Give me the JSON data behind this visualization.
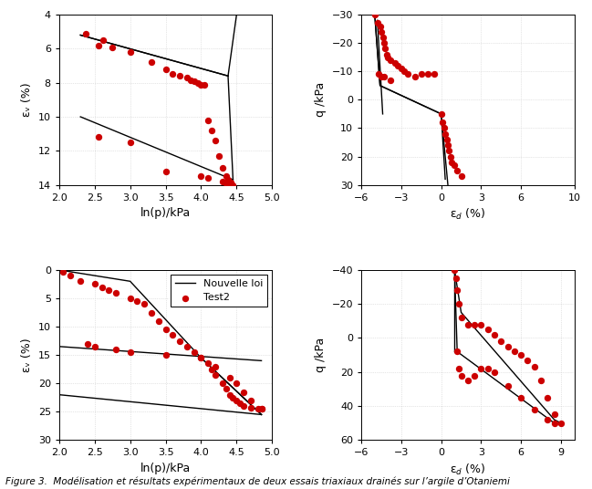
{
  "fig_width": 6.49,
  "fig_height": 5.36,
  "top_left": {
    "xlabel": "ln(p)/kPa",
    "ylabel": "εᵥ (%)",
    "xlim": [
      2,
      5
    ],
    "ylim": [
      14,
      4
    ],
    "xticks": [
      2,
      2.5,
      3,
      3.5,
      4,
      4.5,
      5
    ],
    "yticks": [
      4,
      6,
      8,
      10,
      12,
      14
    ],
    "lines": [
      {
        "x": [
          2.3,
          4.38
        ],
        "y": [
          5.2,
          7.6
        ]
      },
      {
        "x": [
          4.38,
          4.5
        ],
        "y": [
          7.6,
          4.0
        ]
      },
      {
        "x": [
          2.3,
          4.38
        ],
        "y": [
          5.2,
          7.6
        ]
      },
      {
        "x": [
          4.38,
          4.45
        ],
        "y": [
          7.6,
          13.7
        ]
      },
      {
        "x": [
          2.3,
          4.45
        ],
        "y": [
          10.0,
          13.7
        ]
      }
    ],
    "dots_x": [
      2.38,
      2.55,
      2.62,
      2.75,
      3.0,
      3.3,
      3.5,
      3.6,
      3.7,
      3.8,
      3.85,
      3.9,
      3.95,
      4.0,
      4.05,
      4.1,
      4.15,
      4.2,
      4.25,
      4.3,
      4.35,
      4.38,
      4.4,
      4.42,
      4.45,
      2.55,
      3.0,
      3.5,
      4.0,
      4.1,
      4.3,
      4.35,
      4.4
    ],
    "dots_y": [
      5.1,
      5.8,
      5.5,
      5.9,
      6.2,
      6.8,
      7.2,
      7.5,
      7.6,
      7.7,
      7.85,
      7.9,
      8.0,
      8.1,
      8.15,
      10.2,
      10.8,
      11.4,
      12.3,
      13.0,
      13.5,
      13.7,
      13.85,
      13.85,
      14.0,
      11.2,
      11.5,
      13.2,
      13.5,
      13.6,
      13.8,
      13.9,
      14.0
    ]
  },
  "top_right": {
    "xlabel": "ε_d (%)",
    "ylabel": "q /kPa",
    "xlim": [
      -6,
      10
    ],
    "ylim": [
      30,
      -30
    ],
    "xticks": [
      -6,
      -3,
      0,
      3,
      6,
      10
    ],
    "yticks": [
      -30,
      -20,
      -10,
      0,
      10,
      20,
      30
    ],
    "lines": [
      {
        "x": [
          -5.0,
          -4.6,
          0.0,
          0.5
        ],
        "y": [
          -30,
          -5,
          5,
          30
        ]
      },
      {
        "x": [
          -5.0,
          -4.6,
          0.0,
          0.3
        ],
        "y": [
          -30,
          -5,
          5,
          28
        ]
      },
      {
        "x": [
          -4.8,
          -4.4
        ],
        "y": [
          -28,
          5
        ]
      }
    ],
    "dots_x": [
      -5.0,
      -4.8,
      -4.6,
      -4.5,
      -4.4,
      -4.3,
      -4.2,
      -4.1,
      -4.0,
      -3.8,
      -3.5,
      -3.3,
      -3.0,
      -2.8,
      -2.5,
      -2.0,
      -1.5,
      -1.0,
      -0.5,
      0.0,
      0.1,
      0.2,
      0.3,
      0.4,
      0.5,
      0.6,
      0.7,
      0.8,
      1.0,
      1.2,
      1.5,
      -4.7,
      -4.5,
      -4.3,
      -3.8
    ],
    "dots_y": [
      -30,
      -27,
      -26,
      -24,
      -22,
      -20,
      -18,
      -16,
      -15,
      -14,
      -13,
      -12,
      -11,
      -10,
      -9,
      -8,
      -9,
      -9,
      -9,
      5,
      8,
      10,
      12,
      14,
      16,
      18,
      20,
      22,
      23,
      25,
      27,
      -9,
      -8,
      -8,
      -7
    ]
  },
  "bottom_left": {
    "xlabel": "ln(p)/kPa",
    "ylabel": "εᵥ (%)",
    "xlim": [
      2,
      5
    ],
    "ylim": [
      30,
      0
    ],
    "xticks": [
      2,
      2.5,
      3,
      3.5,
      4,
      4.5,
      5
    ],
    "yticks": [
      0,
      5,
      10,
      15,
      20,
      25,
      30
    ],
    "lines": [
      {
        "x": [
          2.0,
          3.0,
          4.0,
          4.85
        ],
        "y": [
          0.0,
          2.0,
          15.5,
          25.5
        ]
      },
      {
        "x": [
          4.0,
          4.85
        ],
        "y": [
          15.5,
          25.5
        ]
      },
      {
        "x": [
          2.0,
          4.85
        ],
        "y": [
          13.5,
          16.0
        ]
      },
      {
        "x": [
          2.0,
          4.85
        ],
        "y": [
          22.0,
          25.5
        ]
      }
    ],
    "dots_x": [
      2.05,
      2.15,
      2.3,
      2.5,
      2.6,
      2.7,
      2.8,
      3.0,
      3.1,
      3.2,
      3.3,
      3.4,
      3.5,
      3.6,
      3.7,
      3.8,
      3.9,
      4.0,
      4.1,
      4.15,
      4.2,
      4.3,
      4.35,
      4.4,
      4.45,
      4.5,
      4.55,
      4.6,
      4.7,
      4.8,
      4.85,
      2.4,
      2.5,
      2.8,
      3.0,
      3.5,
      4.0,
      4.2,
      4.4,
      4.5,
      4.6,
      4.7,
      4.85
    ],
    "dots_y": [
      0.3,
      1.0,
      2.0,
      2.5,
      3.0,
      3.5,
      4.0,
      5.0,
      5.5,
      6.0,
      7.5,
      9.0,
      10.5,
      11.5,
      12.5,
      13.5,
      14.5,
      15.5,
      16.5,
      17.5,
      18.5,
      20.0,
      21.0,
      22.0,
      22.5,
      23.0,
      23.5,
      24.0,
      24.3,
      24.5,
      24.5,
      13.0,
      13.5,
      14.0,
      14.5,
      15.0,
      15.5,
      17.0,
      19.0,
      20.0,
      21.5,
      23.0,
      24.5
    ],
    "legend_loc": "upper right",
    "legend_line_label": "Nouvelle loi",
    "legend_dot_label": "Test2"
  },
  "bottom_right": {
    "xlabel": "ε_d (%)",
    "ylabel": "q /kPa",
    "xlim": [
      -6,
      10
    ],
    "ylim": [
      60,
      -40
    ],
    "xticks": [
      -6,
      -3,
      0,
      3,
      6,
      9
    ],
    "yticks": [
      -40,
      -20,
      0,
      20,
      40,
      60
    ],
    "lines": [
      {
        "x": [
          1.0,
          1.5,
          8.5,
          9.0
        ],
        "y": [
          -40,
          -15,
          48,
          50
        ]
      },
      {
        "x": [
          1.0,
          1.2,
          8.5
        ],
        "y": [
          -40,
          8,
          50
        ]
      },
      {
        "x": [
          1.0,
          1.0
        ],
        "y": [
          -40,
          8
        ]
      }
    ],
    "dots_x": [
      1.0,
      1.1,
      1.2,
      1.3,
      1.5,
      2.0,
      2.5,
      3.0,
      3.5,
      4.0,
      4.5,
      5.0,
      5.5,
      6.0,
      6.5,
      7.0,
      7.5,
      8.0,
      8.5,
      9.0,
      1.2,
      1.3,
      1.5,
      2.0,
      2.5,
      3.0,
      3.5,
      4.0,
      5.0,
      6.0,
      7.0,
      8.0,
      8.5
    ],
    "dots_y": [
      -40,
      -35,
      -28,
      -20,
      -12,
      -8,
      -8,
      -8,
      -5,
      -2,
      2,
      5,
      8,
      10,
      13,
      17,
      25,
      35,
      45,
      50,
      8,
      18,
      22,
      25,
      22,
      18,
      18,
      20,
      28,
      35,
      42,
      48,
      50
    ]
  },
  "dot_color": "#cc0000",
  "dot_size": 28,
  "dot_marker": "o",
  "line_color": "black",
  "line_width": 1.0,
  "grid_color": "#cccccc",
  "grid_linestyle": ":",
  "tick_fontsize": 8,
  "label_fontsize": 9,
  "caption": "Figure 3.  Modélisation et résultats expérimentaux de deux essais triaxiaux drainés sur l’argile d’Otaniemi"
}
